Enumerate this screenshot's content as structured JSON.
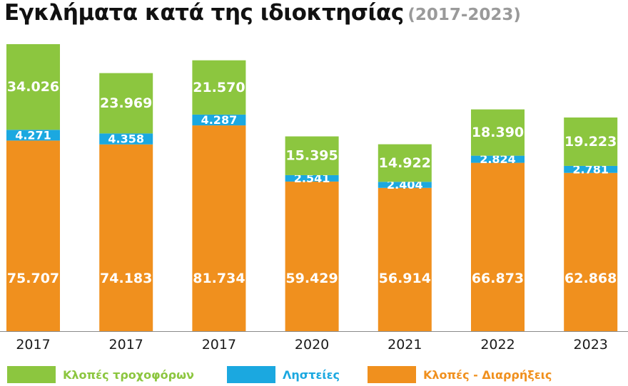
{
  "title": {
    "main": "Εγκλήματα κατά της ιδιοκτησίας",
    "sub": "(2017-2023)"
  },
  "chart_data": {
    "type": "bar",
    "stacked": true,
    "categories": [
      "2017",
      "2017",
      "2017",
      "2020",
      "2021",
      "2022",
      "2023"
    ],
    "series": [
      {
        "name": "Κλοπές - Διαρρήξεις",
        "color": "#f0901e",
        "values": [
          75707,
          74183,
          81734,
          59429,
          56914,
          66873,
          62868
        ],
        "labels": [
          "75.707",
          "74.183",
          "81.734",
          "59.429",
          "56.914",
          "66.873",
          "62.868"
        ]
      },
      {
        "name": "Ληστείες",
        "color": "#1ba8e0",
        "values": [
          4271,
          4358,
          4287,
          2541,
          2404,
          2824,
          2781
        ],
        "labels": [
          "4.271",
          "4.358",
          "4.287",
          "2.541",
          "2.404",
          "2.824",
          "2.781"
        ]
      },
      {
        "name": "Κλοπές τροχοφόρων",
        "color": "#8cc63f",
        "values": [
          34026,
          23969,
          21570,
          15395,
          14922,
          18390,
          19223
        ],
        "labels": [
          "34.026",
          "23.969",
          "21.570",
          "15.395",
          "14.922",
          "18.390",
          "19.223"
        ]
      }
    ],
    "legend": [
      {
        "name": "Κλοπές τροχοφόρων",
        "color": "#8cc63f"
      },
      {
        "name": "Ληστείες",
        "color": "#1ba8e0"
      },
      {
        "name": "Κλοπές - Διαρρήξεις",
        "color": "#f0901e"
      }
    ],
    "ylim": [
      0,
      114004
    ],
    "grid": false,
    "legend_position": "bottom"
  }
}
